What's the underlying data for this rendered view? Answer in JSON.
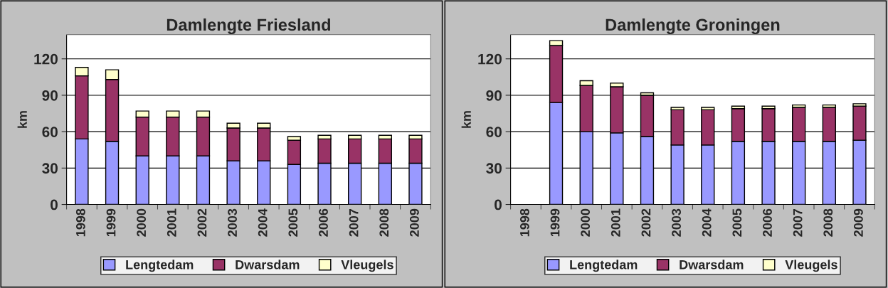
{
  "chart_data": [
    {
      "type": "bar",
      "title": "Damlengte Friesland",
      "ylabel": "km",
      "stacked": true,
      "categories": [
        "1998",
        "1999",
        "2000",
        "2001",
        "2002",
        "2003",
        "2004",
        "2005",
        "2006",
        "2007",
        "2008",
        "2009"
      ],
      "ylim": [
        0,
        140
      ],
      "yticks": [
        0,
        30,
        60,
        90,
        120
      ],
      "grid": "y",
      "legend": "bottom",
      "series": [
        {
          "name": "Lengtedam",
          "color": "#9999ff",
          "values": [
            54,
            52,
            40,
            40,
            40,
            36,
            36,
            33,
            34,
            34,
            34,
            34
          ]
        },
        {
          "name": "Dwarsdam",
          "color": "#993366",
          "values": [
            52,
            51,
            32,
            32,
            32,
            27,
            27,
            20,
            20,
            20,
            20,
            20
          ]
        },
        {
          "name": "Vleugels",
          "color": "#ffffcc",
          "values": [
            7,
            8,
            5,
            5,
            5,
            4,
            4,
            3,
            3,
            3,
            3,
            3
          ]
        }
      ]
    },
    {
      "type": "bar",
      "title": "Damlengte Groningen",
      "ylabel": "km",
      "stacked": true,
      "categories": [
        "1998",
        "1999",
        "2000",
        "2001",
        "2002",
        "2003",
        "2004",
        "2005",
        "2006",
        "2007",
        "2008",
        "2009"
      ],
      "ylim": [
        0,
        140
      ],
      "yticks": [
        0,
        30,
        60,
        90,
        120
      ],
      "grid": "y",
      "legend": "bottom",
      "series": [
        {
          "name": "Lengtedam",
          "color": "#9999ff",
          "values": [
            null,
            84,
            60,
            59,
            56,
            49,
            49,
            52,
            52,
            52,
            52,
            53
          ]
        },
        {
          "name": "Dwarsdam",
          "color": "#993366",
          "values": [
            null,
            47,
            38,
            38,
            34,
            29,
            29,
            27,
            27,
            28,
            28,
            28
          ]
        },
        {
          "name": "Vleugels",
          "color": "#ffffcc",
          "values": [
            null,
            4,
            4,
            3,
            2,
            2,
            2,
            2,
            2,
            2,
            2,
            2
          ]
        }
      ]
    }
  ]
}
